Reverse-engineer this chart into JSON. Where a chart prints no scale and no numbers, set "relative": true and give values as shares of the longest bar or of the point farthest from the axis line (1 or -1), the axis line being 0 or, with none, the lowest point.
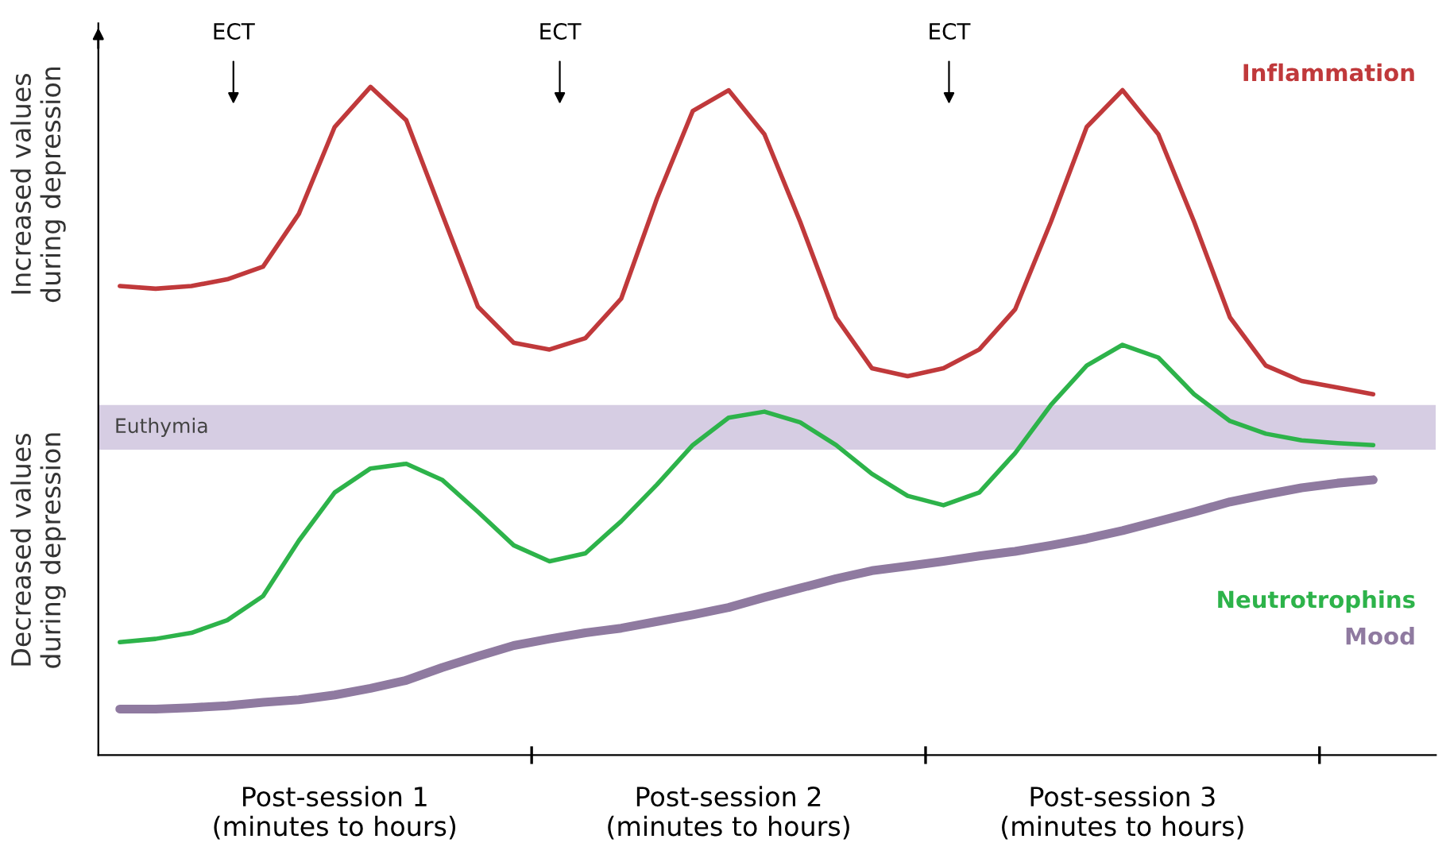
{
  "chart_data": {
    "type": "line",
    "relative": true,
    "categories": [
      null,
      null,
      null,
      null,
      null,
      null,
      "Post-session 1\n(minutes to hours)",
      null,
      null,
      null,
      null,
      null,
      null,
      null,
      null,
      null,
      null,
      "Post-session 2\n(minutes to hours)",
      null,
      null,
      null,
      null,
      null,
      null,
      null,
      null,
      null,
      null,
      "Post-session 3\n(minutes to hours)",
      null,
      null,
      null,
      null,
      null,
      null,
      null
    ],
    "series": [
      {
        "name": "Inflammation",
        "color": "#c0393b",
        "values": [
          0.702,
          0.698,
          0.702,
          0.712,
          0.731,
          0.81,
          0.94,
          1.0,
          0.95,
          0.81,
          0.671,
          0.617,
          0.607,
          0.624,
          0.683,
          0.833,
          0.964,
          0.995,
          0.929,
          0.798,
          0.655,
          0.579,
          0.567,
          0.579,
          0.607,
          0.667,
          0.798,
          0.94,
          0.995,
          0.929,
          0.798,
          0.655,
          0.583,
          0.56,
          0.55,
          0.54
        ]
      },
      {
        "name": "Neutrotrophins",
        "color": "#2db34a",
        "values": [
          0.169,
          0.174,
          0.183,
          0.202,
          0.238,
          0.321,
          0.393,
          0.429,
          0.436,
          0.412,
          0.364,
          0.314,
          0.29,
          0.302,
          0.35,
          0.405,
          0.464,
          0.505,
          0.514,
          0.498,
          0.464,
          0.421,
          0.388,
          0.374,
          0.393,
          0.452,
          0.524,
          0.583,
          0.614,
          0.595,
          0.54,
          0.5,
          0.481,
          0.471,
          0.467,
          0.464
        ]
      },
      {
        "name": "Mood",
        "color": "#8f7aa0",
        "values": [
          0.069,
          0.069,
          0.071,
          0.074,
          0.079,
          0.083,
          0.09,
          0.1,
          0.112,
          0.131,
          0.148,
          0.164,
          0.174,
          0.183,
          0.19,
          0.2,
          0.21,
          0.221,
          0.236,
          0.25,
          0.264,
          0.276,
          0.283,
          0.29,
          0.298,
          0.305,
          0.314,
          0.324,
          0.336,
          0.35,
          0.364,
          0.379,
          0.39,
          0.4,
          0.407,
          0.412
        ]
      }
    ],
    "bands": [
      {
        "axis": "y",
        "from": 0.457,
        "to": 0.524,
        "label": "Euthymia",
        "color": "#d6cde3"
      }
    ],
    "annotations": [
      "Increased values\nduring depression",
      "Decreased values\nduring depression",
      "ECT",
      "ECT",
      "ECT"
    ],
    "legend": false,
    "grid": false
  }
}
